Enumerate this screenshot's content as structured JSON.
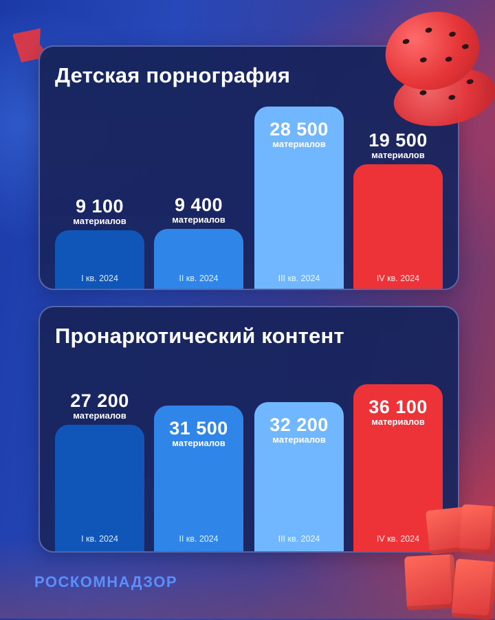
{
  "brand": "РОСКОМНАДЗОР",
  "colors": {
    "q1": "#0f56b8",
    "q2": "#2f86e8",
    "q3": "#71b7ff",
    "q4": "#ee3338",
    "brand": "#5a8fff"
  },
  "icons": [
    "cookie-icon",
    "boxes-icon",
    "flag-icon"
  ],
  "chart_data": [
    {
      "type": "bar",
      "title": "Детская порнография",
      "unit_label": "материалов",
      "categories": [
        "I кв. 2024",
        "II кв. 2024",
        "III кв. 2024",
        "IV кв. 2024"
      ],
      "values": [
        9100,
        9400,
        28500,
        19500
      ],
      "value_labels": [
        "9 100",
        "9 400",
        "28 500",
        "19 500"
      ]
    },
    {
      "type": "bar",
      "title": "Пронаркотический контент",
      "unit_label": "материалов",
      "categories": [
        "I кв. 2024",
        "II кв. 2024",
        "III кв. 2024",
        "IV кв. 2024"
      ],
      "values": [
        27200,
        31500,
        32200,
        36100
      ],
      "value_labels": [
        "27 200",
        "31 500",
        "32 200",
        "36 100"
      ]
    }
  ]
}
